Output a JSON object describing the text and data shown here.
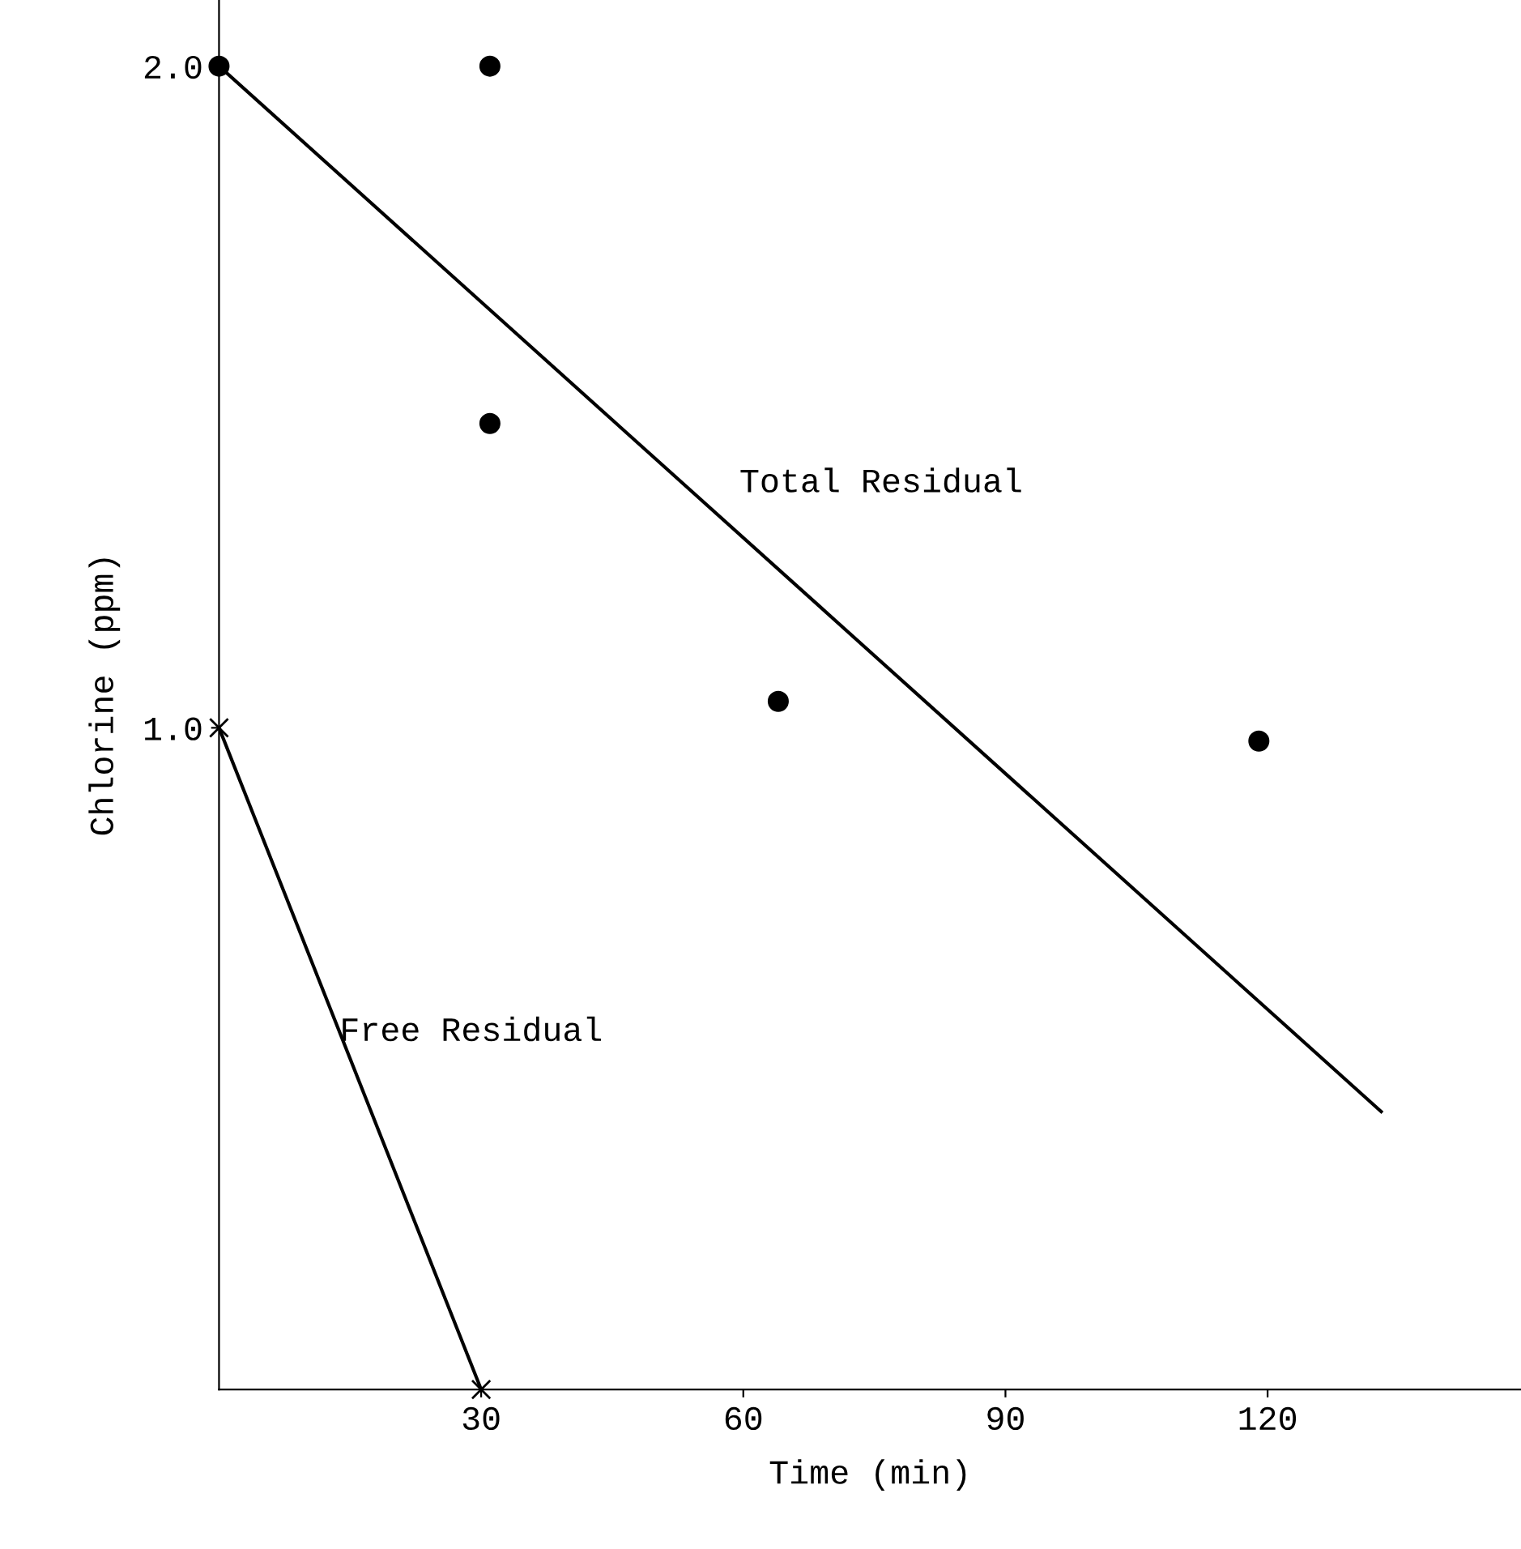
{
  "chart_data": {
    "type": "scatter",
    "xlabel": "Time (min)",
    "ylabel": "Chlorine (ppm)",
    "xlim": [
      0,
      149
    ],
    "ylim": [
      0,
      2.1
    ],
    "xticks": [
      30,
      60,
      90,
      120
    ],
    "yticks": [
      {
        "value": 1.0,
        "label": "1.0"
      },
      {
        "value": 2.0,
        "label": "2.0"
      }
    ],
    "grid": false,
    "legend": false,
    "series": [
      {
        "color": "#000000",
        "marker": "circle",
        "x": [
          0,
          31,
          31,
          64,
          119
        ],
        "values": [
          2.0,
          2.0,
          1.46,
          1.04,
          0.98
        ]
      },
      {
        "type": "line",
        "name": "Total Residual",
        "color": "#000000",
        "marker": "none",
        "line_style": "solid",
        "x": [
          0,
          133
        ],
        "values": [
          2.0,
          0.42
        ]
      },
      {
        "type": "line",
        "name": "Free Residual",
        "color": "#000000",
        "marker": "cross",
        "line_style": "solid",
        "x": [
          0,
          30
        ],
        "values": [
          1.0,
          0.0
        ]
      }
    ]
  }
}
